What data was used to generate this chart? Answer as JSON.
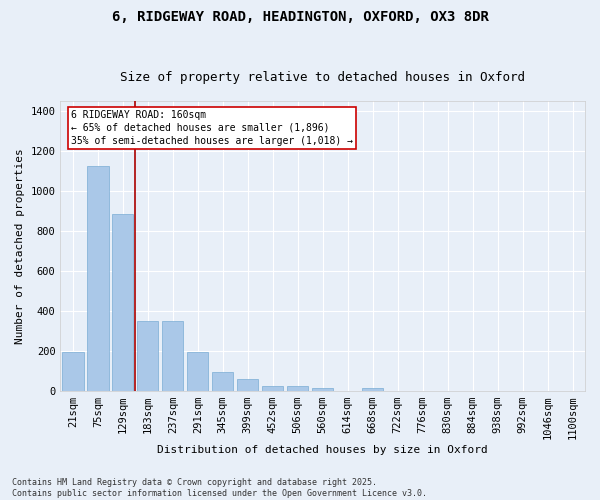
{
  "title1": "6, RIDGEWAY ROAD, HEADINGTON, OXFORD, OX3 8DR",
  "title2": "Size of property relative to detached houses in Oxford",
  "xlabel": "Distribution of detached houses by size in Oxford",
  "ylabel": "Number of detached properties",
  "categories": [
    "21sqm",
    "75sqm",
    "129sqm",
    "183sqm",
    "237sqm",
    "291sqm",
    "345sqm",
    "399sqm",
    "452sqm",
    "506sqm",
    "560sqm",
    "614sqm",
    "668sqm",
    "722sqm",
    "776sqm",
    "830sqm",
    "884sqm",
    "938sqm",
    "992sqm",
    "1046sqm",
    "1100sqm"
  ],
  "values": [
    195,
    1125,
    885,
    350,
    350,
    195,
    95,
    58,
    25,
    22,
    16,
    0,
    16,
    0,
    0,
    0,
    0,
    0,
    0,
    0,
    0
  ],
  "bar_color": "#aac8e8",
  "bar_edge_color": "#7aadd4",
  "background_color": "#e8eff8",
  "grid_color": "#ffffff",
  "vline_x": 2.5,
  "vline_color": "#aa0000",
  "annotation_text": "6 RIDGEWAY ROAD: 160sqm\n← 65% of detached houses are smaller (1,896)\n35% of semi-detached houses are larger (1,018) →",
  "annotation_box_color": "#cc0000",
  "footer_text": "Contains HM Land Registry data © Crown copyright and database right 2025.\nContains public sector information licensed under the Open Government Licence v3.0.",
  "ylim": [
    0,
    1450
  ],
  "yticks": [
    0,
    200,
    400,
    600,
    800,
    1000,
    1200,
    1400
  ],
  "title_fontsize": 10,
  "subtitle_fontsize": 9,
  "axis_label_fontsize": 8,
  "tick_fontsize": 7.5,
  "annotation_fontsize": 7,
  "footer_fontsize": 6
}
